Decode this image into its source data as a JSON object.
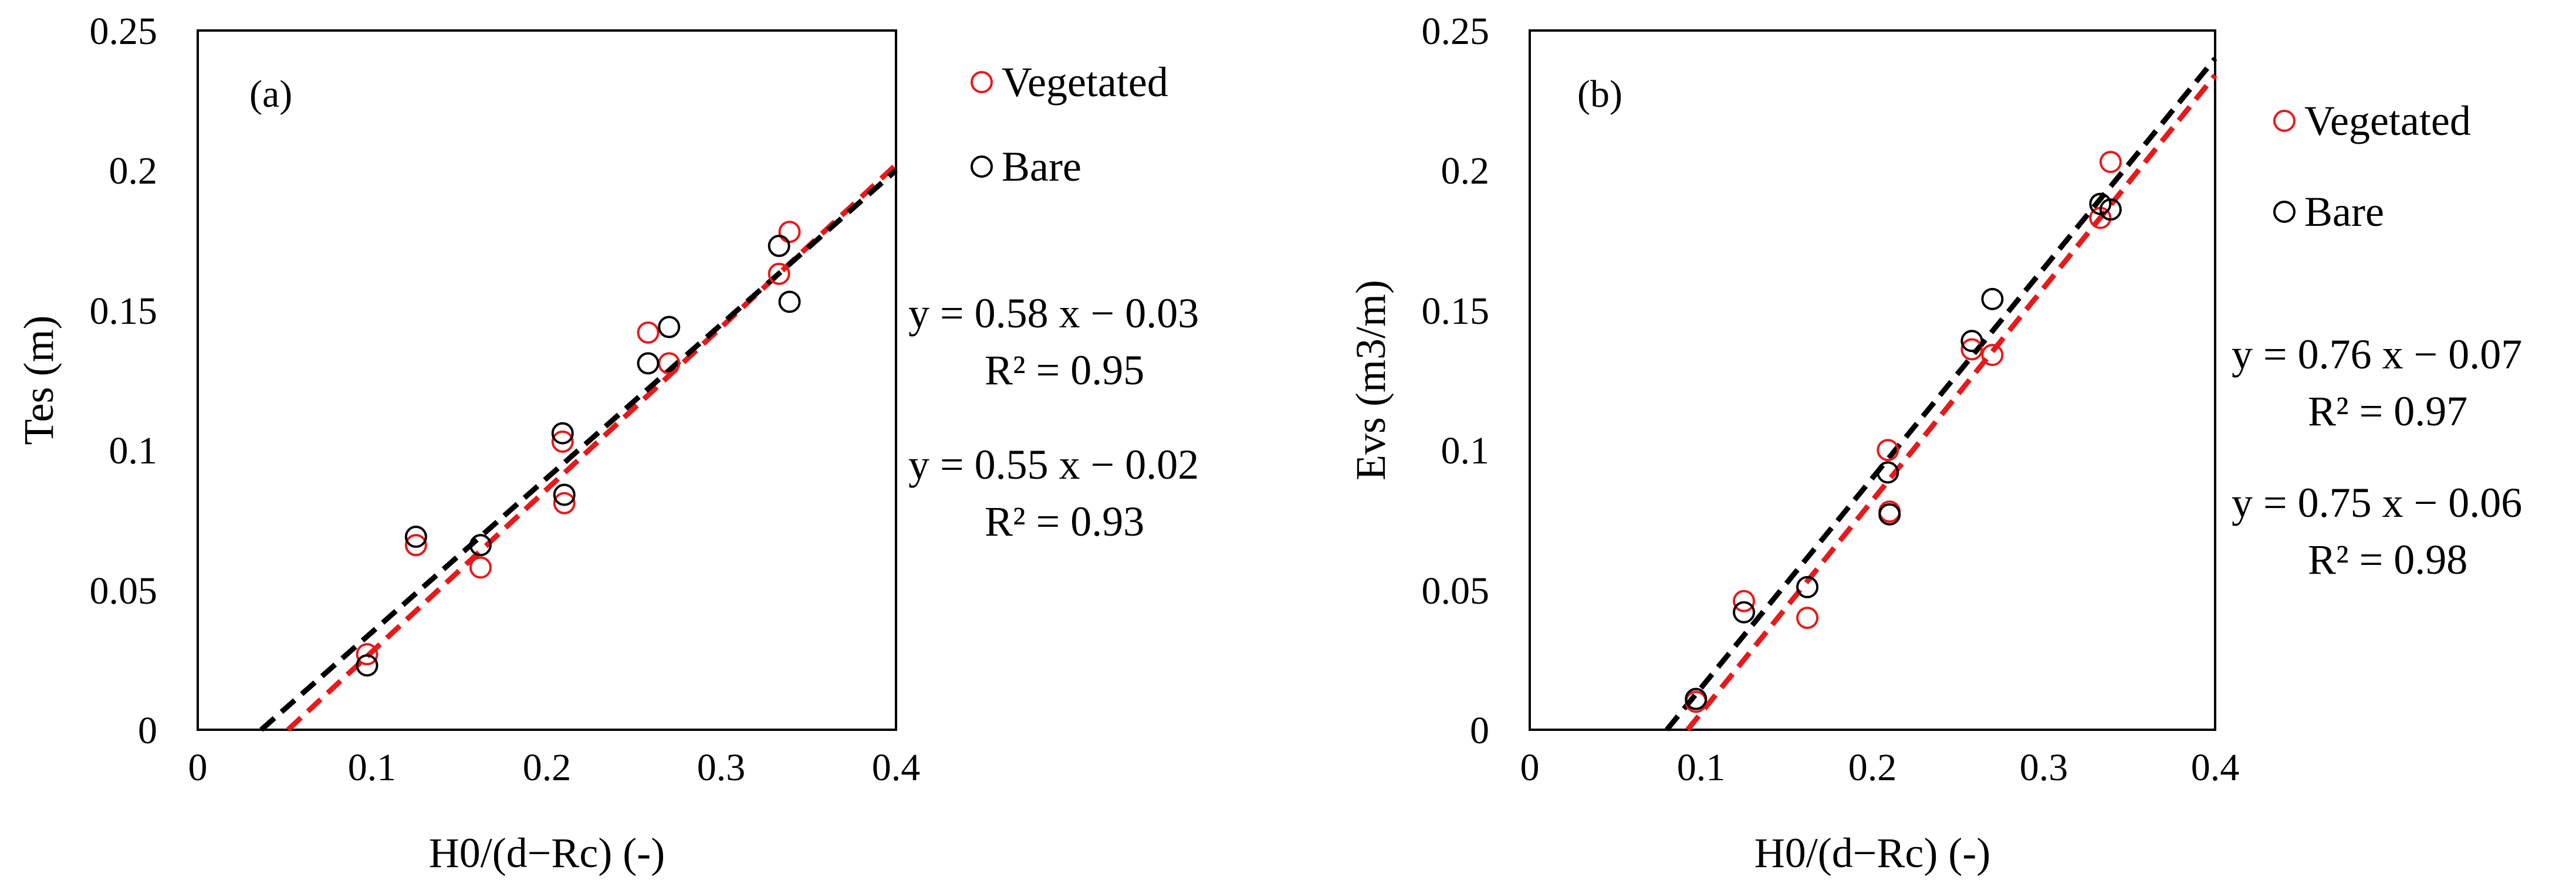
{
  "chart_data": [
    {
      "type": "scatter",
      "panel_label": "(a)",
      "xlabel": "H0/(d−Rc) (-)",
      "ylabel": "Tes (m)",
      "xlim": [
        0,
        0.4
      ],
      "ylim": [
        0,
        0.25
      ],
      "x_ticks": [
        "0",
        "0.1",
        "0.2",
        "0.3",
        "0.4"
      ],
      "y_ticks": [
        "0",
        "0.05",
        "0.1",
        "0.15",
        "0.2",
        "0.25"
      ],
      "grid": false,
      "legend_position": "top-right outside",
      "series": [
        {
          "name": "Vegetated",
          "color": "#e8191b",
          "x": [
            0.097,
            0.125,
            0.162,
            0.209,
            0.21,
            0.258,
            0.27,
            0.333,
            0.339
          ],
          "y": [
            0.027,
            0.066,
            0.058,
            0.103,
            0.081,
            0.142,
            0.131,
            0.163,
            0.178
          ],
          "fit": {
            "slope": 0.58,
            "intercept": -0.03
          },
          "equation": "y = 0.58 x − 0.03",
          "r2": "R² = 0.95"
        },
        {
          "name": "Bare",
          "color": "#000000",
          "x": [
            0.097,
            0.125,
            0.162,
            0.209,
            0.21,
            0.258,
            0.27,
            0.333,
            0.339
          ],
          "y": [
            0.023,
            0.069,
            0.066,
            0.106,
            0.084,
            0.131,
            0.144,
            0.173,
            0.153
          ],
          "fit": {
            "slope": 0.55,
            "intercept": -0.02
          },
          "equation": "y = 0.55 x − 0.02",
          "r2": "R² = 0.93"
        }
      ]
    },
    {
      "type": "scatter",
      "panel_label": "(b)",
      "xlabel": "H0/(d−Rc) (-)",
      "ylabel": "Evs (m3/m)",
      "xlim": [
        0,
        0.4
      ],
      "ylim": [
        0,
        0.25
      ],
      "x_ticks": [
        "0",
        "0.1",
        "0.2",
        "0.3",
        "0.4"
      ],
      "y_ticks": [
        "0",
        "0.05",
        "0.1",
        "0.15",
        "0.2",
        "0.25"
      ],
      "grid": false,
      "legend_position": "top-right outside",
      "series": [
        {
          "name": "Vegetated",
          "color": "#e8191b",
          "x": [
            0.097,
            0.125,
            0.162,
            0.209,
            0.21,
            0.258,
            0.27,
            0.333,
            0.339
          ],
          "y": [
            0.01,
            0.046,
            0.04,
            0.1,
            0.078,
            0.136,
            0.134,
            0.183,
            0.203
          ],
          "fit": {
            "slope": 0.76,
            "intercept": -0.07
          },
          "equation": "y = 0.76 x − 0.07",
          "r2": "R² = 0.97"
        },
        {
          "name": "Bare",
          "color": "#000000",
          "x": [
            0.097,
            0.125,
            0.162,
            0.209,
            0.21,
            0.258,
            0.27,
            0.333,
            0.339
          ],
          "y": [
            0.011,
            0.042,
            0.051,
            0.092,
            0.077,
            0.139,
            0.154,
            0.188,
            0.186
          ],
          "fit": {
            "slope": 0.75,
            "intercept": -0.06
          },
          "equation": "y = 0.75 x − 0.06",
          "r2": "R² = 0.98"
        }
      ]
    }
  ]
}
